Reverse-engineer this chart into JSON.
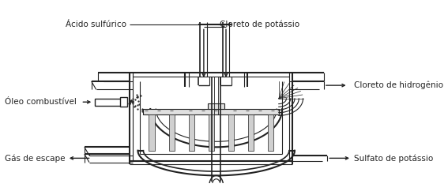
{
  "bg_color": "#ffffff",
  "line_color": "#222222",
  "labels": {
    "acido_sulfurico": "Ácido sulfúrico",
    "cloreto_potassio": "Cloreto de potássio",
    "oleo_combustivel": "Óleo combustível",
    "cloreto_hidrogenio": "Cloreto de hidrogênio",
    "gas_escape": "Gás de escape",
    "sulfato_potassio": "Sulfato de potássio"
  },
  "fontsize": 7.5,
  "figsize": [
    5.67,
    2.47
  ],
  "dpi": 100
}
